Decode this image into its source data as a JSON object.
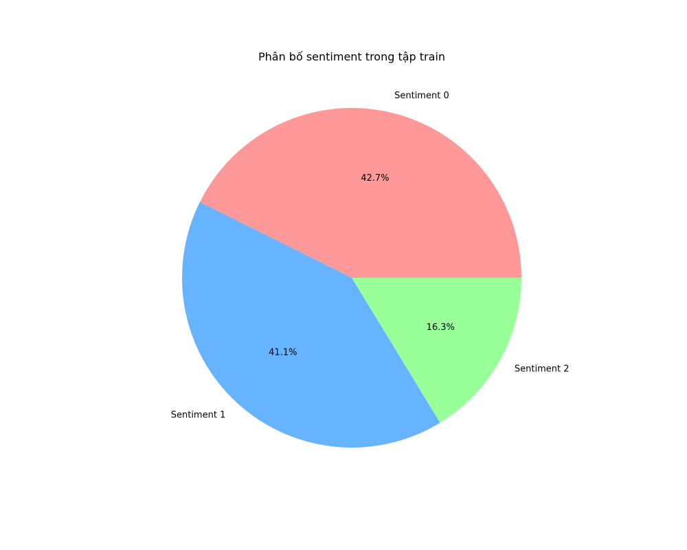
{
  "chart_data": {
    "type": "pie",
    "title": "Phân bố sentiment trong tập train",
    "categories": [
      "Sentiment 0",
      "Sentiment 1",
      "Sentiment 2"
    ],
    "values": [
      42.7,
      41.1,
      16.3
    ],
    "value_labels": [
      "42.7%",
      "41.1%",
      "16.3%"
    ],
    "colors": [
      "#ff9999",
      "#66b3ff",
      "#99ff99"
    ],
    "start_angle_deg": 0,
    "direction": "counterclockwise",
    "legend": "none"
  }
}
